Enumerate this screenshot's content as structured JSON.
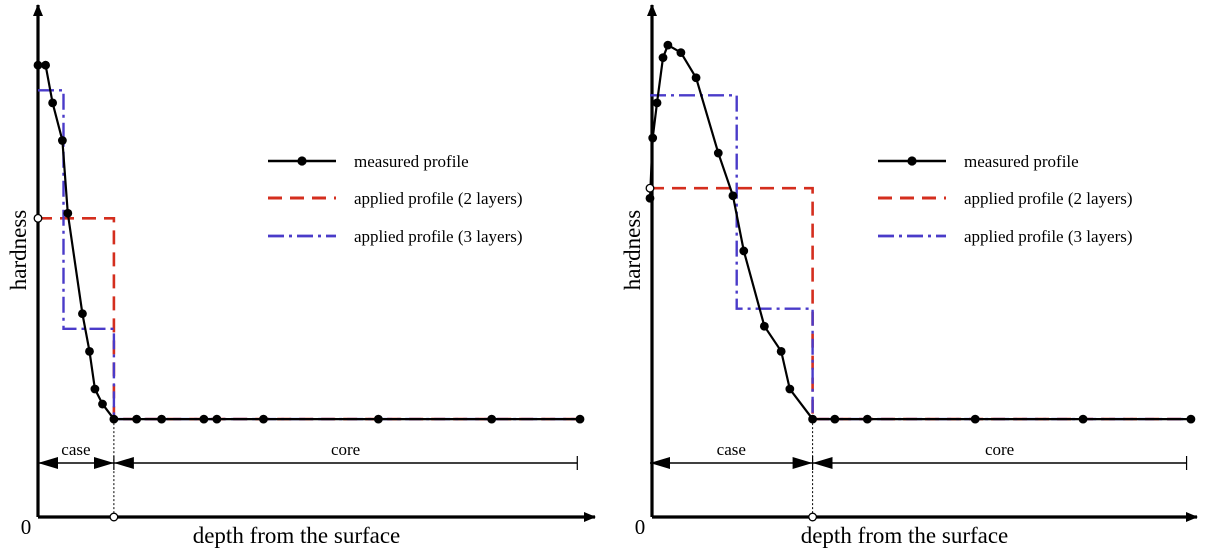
{
  "chart_data": [
    {
      "type": "line",
      "title": "",
      "xlabel": "depth from the surface",
      "ylabel": "hardness",
      "origin_label": "0",
      "x_range": [
        0,
        10
      ],
      "y_range": [
        0,
        10
      ],
      "case_depth": 1.4,
      "legend": {
        "position": "center-right"
      },
      "regions": [
        {
          "label": "case",
          "from": 0,
          "to": 1.4
        },
        {
          "label": "core",
          "from": 1.4,
          "to": 9.95
        }
      ],
      "series": [
        {
          "name": "measured profile",
          "style": "solid-with-markers",
          "color": "#000000",
          "x": [
            0.0,
            0.14,
            0.27,
            0.45,
            0.55,
            0.82,
            0.95,
            1.05,
            1.19,
            1.4,
            1.82,
            2.28,
            3.06,
            3.3,
            4.16,
            6.28,
            8.37,
            10.0
          ],
          "y": [
            9.0,
            9.0,
            8.25,
            7.5,
            6.05,
            4.05,
            3.3,
            2.55,
            2.25,
            1.95,
            1.95,
            1.95,
            1.95,
            1.95,
            1.95,
            1.95,
            1.95,
            1.95
          ]
        },
        {
          "name": "applied profile (2 layers)",
          "style": "dashed",
          "color": "#d42e1e",
          "x": [
            0.0,
            1.4,
            1.4,
            10.0
          ],
          "y": [
            5.95,
            5.95,
            1.95,
            1.95
          ]
        },
        {
          "name": "applied profile (3 layers)",
          "style": "dash-dot",
          "color": "#4a3bc9",
          "x": [
            0.0,
            0.47,
            0.47,
            1.4,
            1.4,
            10.0
          ],
          "y": [
            8.5,
            8.5,
            3.75,
            3.75,
            1.95,
            1.95
          ]
        }
      ]
    },
    {
      "type": "line",
      "title": "",
      "xlabel": "depth from the surface",
      "ylabel": "hardness",
      "origin_label": "0",
      "x_range": [
        0,
        10
      ],
      "y_range": [
        0,
        10
      ],
      "case_depth": 3.0,
      "legend": {
        "position": "center-right"
      },
      "regions": [
        {
          "label": "case",
          "from": 0,
          "to": 3.0
        },
        {
          "label": "core",
          "from": 3.0,
          "to": 9.9
        }
      ],
      "series": [
        {
          "name": "measured profile",
          "style": "solid-with-markers",
          "color": "#000000",
          "x": [
            0.0,
            0.05,
            0.13,
            0.24,
            0.33,
            0.57,
            0.85,
            1.26,
            1.53,
            1.73,
            2.11,
            2.42,
            2.58,
            3.0,
            3.41,
            4.01,
            6.0,
            7.99,
            9.98
          ],
          "y": [
            6.35,
            7.55,
            8.25,
            9.15,
            9.4,
            9.25,
            8.75,
            7.25,
            6.4,
            5.3,
            3.8,
            3.3,
            2.55,
            1.95,
            1.95,
            1.95,
            1.95,
            1.95,
            1.95
          ]
        },
        {
          "name": "applied profile (2 layers)",
          "style": "dashed",
          "color": "#d42e1e",
          "x": [
            0.0,
            3.0,
            3.0,
            10.0
          ],
          "y": [
            6.55,
            6.55,
            1.95,
            1.95
          ]
        },
        {
          "name": "applied profile (3 layers)",
          "style": "dash-dot",
          "color": "#4a3bc9",
          "x": [
            0.0,
            1.6,
            1.6,
            3.0,
            3.0,
            10.0
          ],
          "y": [
            8.4,
            8.4,
            4.15,
            4.15,
            1.95,
            1.95
          ]
        }
      ]
    }
  ]
}
